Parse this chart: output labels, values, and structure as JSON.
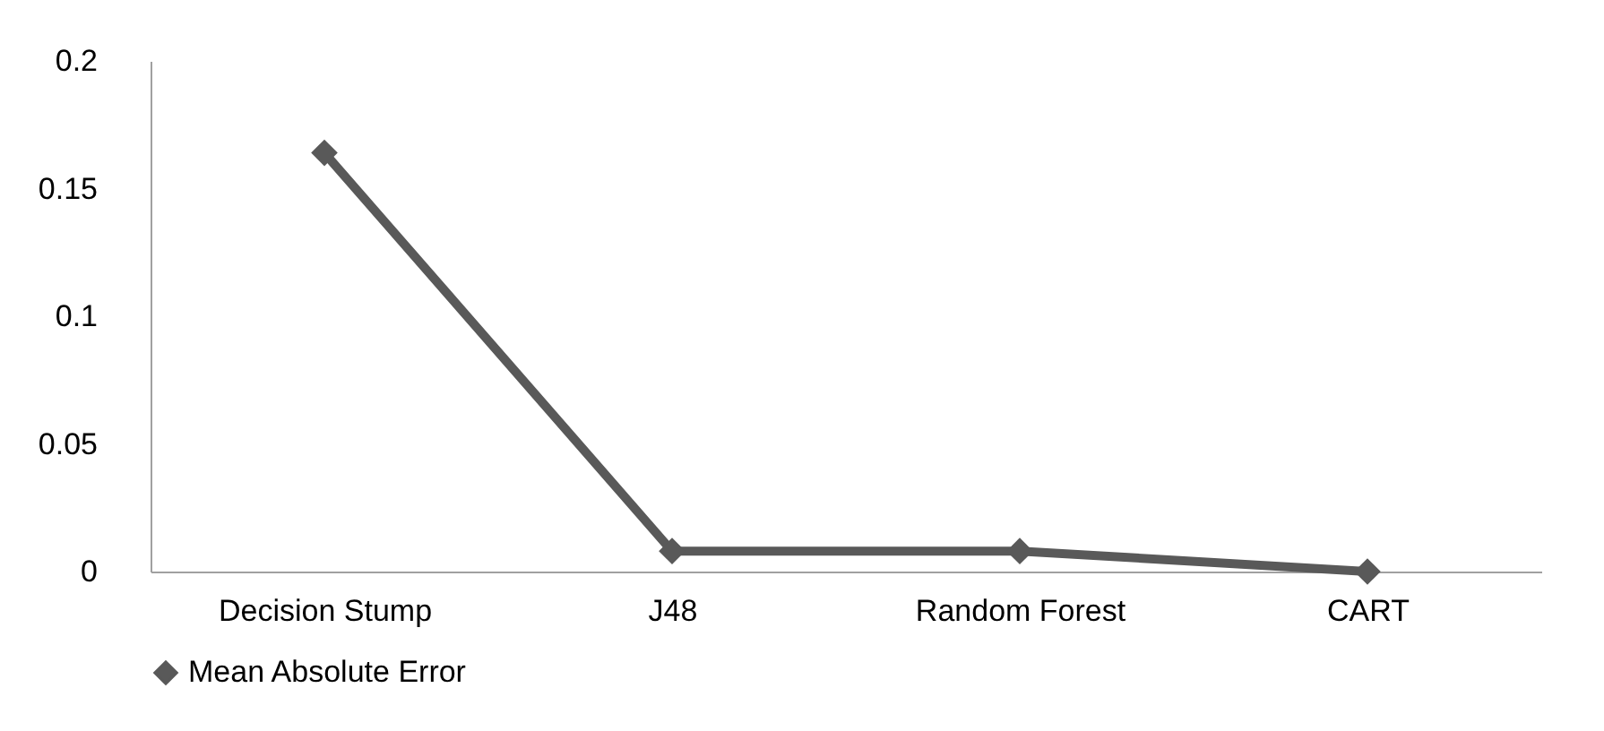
{
  "chart_data": {
    "type": "line",
    "categories": [
      "Decision Stump",
      "J48",
      "Random Forest",
      "CART"
    ],
    "series": [
      {
        "name": "Mean Absolute Error",
        "color": "#595959",
        "values": [
          0.164,
          0.008,
          0.008,
          0.0
        ]
      }
    ],
    "ylim": [
      0,
      0.2
    ],
    "yticks": [
      0,
      0.05,
      0.1,
      0.15,
      0.2
    ],
    "grid": false,
    "legend": "bottom",
    "marker": "diamond",
    "line_style": "solid"
  }
}
